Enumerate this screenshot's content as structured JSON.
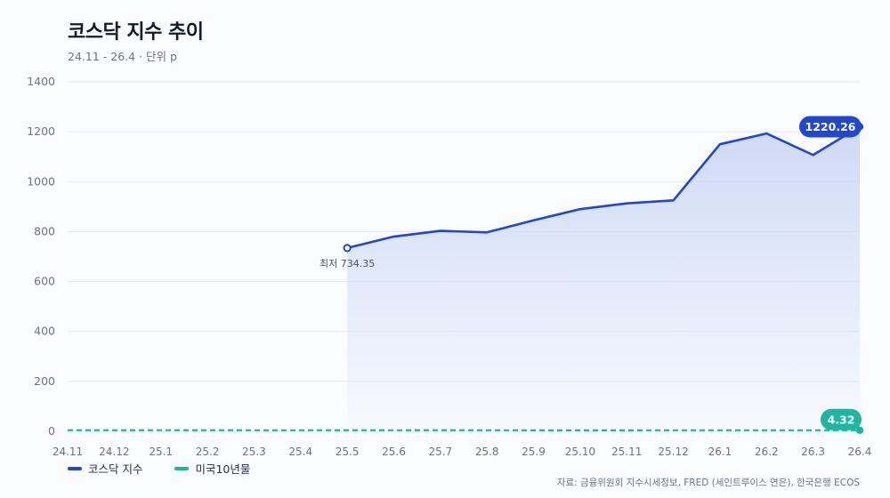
{
  "title": "코스닥 지수 추이",
  "subtitle": "24.11 - 26.4 · 단위 p",
  "source": "자료: 금융위원회 지수시세정보, FRED (세인트루이스 연은), 한국은행 ECOS",
  "colors": {
    "kosdaq": "#2147d1",
    "kosdaq_fill": "#cdd8f5",
    "us10y": "#1fb5a0",
    "grid": "#e4e8f0",
    "axis_text": "#6b7385"
  },
  "chart_data": {
    "type": "line",
    "x": [
      "24.11",
      "24.12",
      "25.1",
      "25.2",
      "25.3",
      "25.4",
      "25.5",
      "25.6",
      "25.7",
      "25.8",
      "25.9",
      "25.10",
      "25.11",
      "25.12",
      "26.1",
      "26.2",
      "26.3",
      "26.4"
    ],
    "ylim": [
      0,
      1400
    ],
    "yticks": [
      0,
      200,
      400,
      600,
      800,
      1000,
      1200,
      1400
    ],
    "grid": true,
    "legend": "bottom-left",
    "series": [
      {
        "name": "코스닥 지수",
        "values": [
          null,
          null,
          null,
          null,
          null,
          null,
          734.35,
          780,
          803,
          797,
          845,
          890,
          913,
          925,
          1150,
          1193,
          1107,
          1220.26
        ]
      },
      {
        "name": "미국10년물",
        "values": [
          4.3,
          4.5,
          4.6,
          4.5,
          4.3,
          4.3,
          4.4,
          4.3,
          4.4,
          4.3,
          4.1,
          4.1,
          4.1,
          4.2,
          4.2,
          4.2,
          4.3,
          4.32
        ]
      }
    ],
    "annotations": {
      "min_label": "최저 734.35",
      "kosdaq_last_label": "1220.26",
      "us10y_last_label": "4.32"
    }
  }
}
